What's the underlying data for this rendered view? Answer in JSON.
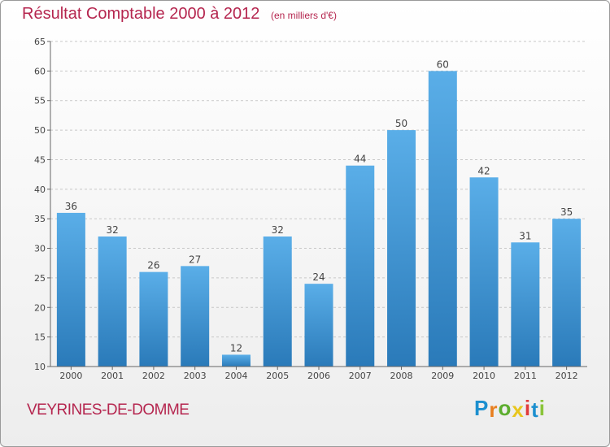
{
  "chart_data": {
    "type": "bar",
    "title": "Résultat Comptable 2000 à 2012",
    "subtitle": "(en milliers d'€)",
    "categories": [
      "2000",
      "2001",
      "2002",
      "2003",
      "2004",
      "2005",
      "2006",
      "2007",
      "2008",
      "2009",
      "2010",
      "2011",
      "2012"
    ],
    "values": [
      36,
      32,
      26,
      27,
      12,
      32,
      24,
      44,
      50,
      60,
      42,
      31,
      35
    ],
    "ylim": [
      10,
      65
    ],
    "yticks": [
      10,
      15,
      20,
      25,
      30,
      35,
      40,
      45,
      50,
      55,
      60,
      65
    ],
    "xlabel": "",
    "ylabel": "",
    "grid": "horizontal dashed",
    "bar_color_top": "#5aaee8",
    "bar_color_bottom": "#2a7ab9"
  },
  "footer": {
    "town": "VEYRINES-DE-DOMME",
    "logo_text": "Proxiti",
    "logo_letters": [
      "P",
      "r",
      "o",
      "x",
      "i",
      "t",
      "i"
    ],
    "logo_colors": [
      "#1c8fcf",
      "#e87e1e",
      "#5cad2e",
      "#e8c61e",
      "#e03b3b",
      "#1c8fcf",
      "#8ac43a"
    ]
  }
}
